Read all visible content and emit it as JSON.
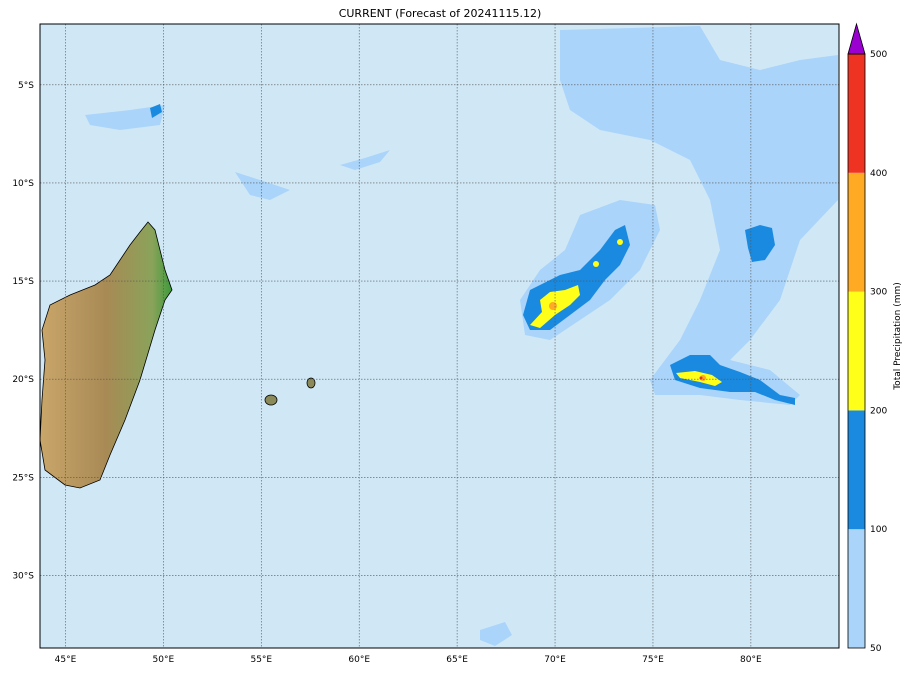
{
  "title": "CURRENT (Forecast of 20241115.12)",
  "map": {
    "lon_range": [
      43.7,
      84.5
    ],
    "lat_range": [
      -33.7,
      -1.9
    ],
    "lon_ticks": [
      45,
      50,
      55,
      60,
      65,
      70,
      75,
      80
    ],
    "lon_labels": [
      "45°E",
      "50°E",
      "55°E",
      "60°E",
      "65°E",
      "70°E",
      "75°E",
      "80°E"
    ],
    "lat_ticks": [
      -5,
      -10,
      -15,
      -20,
      -25,
      -30
    ],
    "lat_labels": [
      "5°S",
      "10°S",
      "15°S",
      "20°S",
      "25°S",
      "30°S"
    ],
    "ocean_color": "#d0e8f6",
    "gridlines": true
  },
  "colorbar": {
    "label": "Total Precipitation (mm)",
    "levels": [
      50,
      100,
      200,
      300,
      400,
      500
    ],
    "tick_labels": [
      "50",
      "100",
      "200",
      "300",
      "400",
      "500"
    ],
    "colors": [
      "#aad4fa",
      "#1a8ae0",
      "#ffff1a",
      "#ffaa22",
      "#ee3322"
    ],
    "extend_color": "#9a00d0",
    "extend": "max"
  }
}
